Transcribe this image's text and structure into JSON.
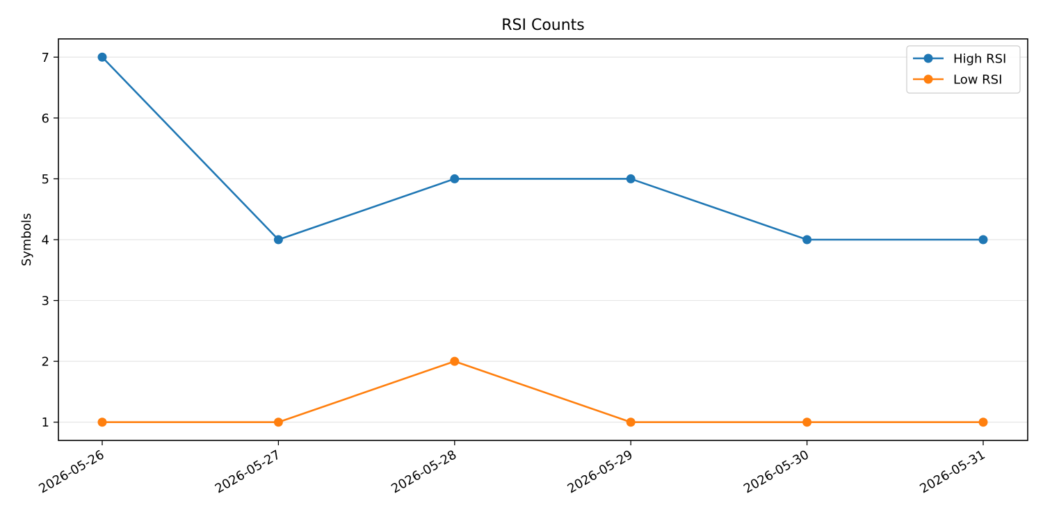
{
  "chart_data": {
    "type": "line",
    "title": "RSI Counts",
    "xlabel": "",
    "ylabel": "Symbols",
    "categories": [
      "2026-05-26",
      "2026-05-27",
      "2026-05-28",
      "2026-05-29",
      "2026-05-30",
      "2026-05-31"
    ],
    "series": [
      {
        "name": "High RSI",
        "color": "#1f77b4",
        "values": [
          7,
          4,
          5,
          5,
          4,
          4
        ]
      },
      {
        "name": "Low RSI",
        "color": "#ff7f0e",
        "values": [
          1,
          1,
          2,
          1,
          1,
          1
        ]
      }
    ],
    "y_ticks": [
      1,
      2,
      3,
      4,
      5,
      6,
      7
    ],
    "ylim": [
      0.7,
      7.3
    ],
    "grid": "horizontal",
    "legend_position": "top-right",
    "marker": "circle"
  }
}
